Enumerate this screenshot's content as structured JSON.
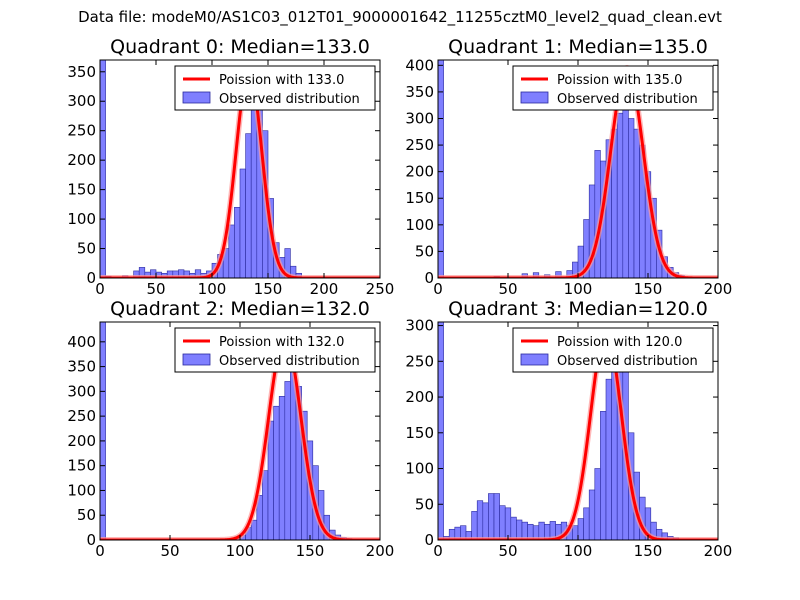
{
  "suptitle": "Data file: modeM0/AS1C03_012T01_9000001642_11255cztM0_level2_quad_clean.evt",
  "colors": {
    "bar_fill": "#7f7fff",
    "bar_edge": "#2a2a9f",
    "line": "#ff0000",
    "line_halo": "#ff9999",
    "axes": "#000000"
  },
  "chart_data": [
    {
      "type": "bar",
      "title": "Quadrant 0: Median=133.0",
      "legend": [
        "Poission with 133.0",
        "Observed distribution"
      ],
      "legend_loc": "top-right",
      "xlim": [
        0,
        250
      ],
      "ylim": [
        0,
        370
      ],
      "xticks": [
        0,
        50,
        100,
        150,
        200,
        250
      ],
      "yticks": [
        0,
        50,
        100,
        150,
        200,
        250,
        300,
        350
      ],
      "bin_width": 5,
      "bins": [
        [
          0,
          370
        ],
        [
          5,
          3
        ],
        [
          10,
          2
        ],
        [
          15,
          1
        ],
        [
          20,
          4
        ],
        [
          25,
          2
        ],
        [
          30,
          12
        ],
        [
          35,
          18
        ],
        [
          40,
          10
        ],
        [
          45,
          14
        ],
        [
          50,
          10
        ],
        [
          55,
          8
        ],
        [
          60,
          12
        ],
        [
          65,
          12
        ],
        [
          70,
          14
        ],
        [
          75,
          12
        ],
        [
          80,
          8
        ],
        [
          85,
          14
        ],
        [
          90,
          8
        ],
        [
          95,
          12
        ],
        [
          100,
          25
        ],
        [
          105,
          40
        ],
        [
          110,
          50
        ],
        [
          115,
          90
        ],
        [
          120,
          120
        ],
        [
          125,
          185
        ],
        [
          130,
          245
        ],
        [
          135,
          340
        ],
        [
          140,
          330
        ],
        [
          145,
          250
        ],
        [
          150,
          135
        ],
        [
          155,
          60
        ],
        [
          160,
          35
        ],
        [
          165,
          50
        ],
        [
          170,
          20
        ],
        [
          175,
          8
        ],
        [
          180,
          2
        ]
      ],
      "poisson_mean": 133.0,
      "poisson_peak": 353
    },
    {
      "type": "bar",
      "title": "Quadrant 1: Median=135.0",
      "legend": [
        "Poission with 135.0",
        "Observed distribution"
      ],
      "legend_loc": "top-right",
      "xlim": [
        0,
        200
      ],
      "ylim": [
        0,
        410
      ],
      "xticks": [
        0,
        50,
        100,
        150,
        200
      ],
      "yticks": [
        0,
        50,
        100,
        150,
        200,
        250,
        300,
        350,
        400
      ],
      "bin_width": 4,
      "bins": [
        [
          0,
          410
        ],
        [
          40,
          3
        ],
        [
          60,
          8
        ],
        [
          68,
          10
        ],
        [
          76,
          6
        ],
        [
          84,
          12
        ],
        [
          92,
          14
        ],
        [
          96,
          30
        ],
        [
          100,
          60
        ],
        [
          104,
          110
        ],
        [
          108,
          175
        ],
        [
          112,
          240
        ],
        [
          116,
          220
        ],
        [
          120,
          260
        ],
        [
          124,
          280
        ],
        [
          128,
          310
        ],
        [
          132,
          320
        ],
        [
          136,
          300
        ],
        [
          140,
          280
        ],
        [
          144,
          250
        ],
        [
          148,
          200
        ],
        [
          152,
          150
        ],
        [
          156,
          90
        ],
        [
          160,
          40
        ],
        [
          164,
          20
        ],
        [
          168,
          10
        ],
        [
          172,
          5
        ],
        [
          176,
          2
        ]
      ],
      "poisson_mean": 135.0,
      "poisson_peak": 395
    },
    {
      "type": "bar",
      "title": "Quadrant 2: Median=132.0",
      "legend": [
        "Poission with 132.0",
        "Observed distribution"
      ],
      "legend_loc": "top-right",
      "xlim": [
        0,
        200
      ],
      "ylim": [
        0,
        440
      ],
      "xticks": [
        0,
        50,
        100,
        150,
        200
      ],
      "yticks": [
        0,
        50,
        100,
        150,
        200,
        250,
        300,
        350,
        400
      ],
      "bin_width": 4,
      "bins": [
        [
          0,
          440
        ],
        [
          84,
          2
        ],
        [
          92,
          3
        ],
        [
          96,
          6
        ],
        [
          100,
          10
        ],
        [
          104,
          25
        ],
        [
          108,
          40
        ],
        [
          112,
          90
        ],
        [
          116,
          140
        ],
        [
          120,
          240
        ],
        [
          124,
          270
        ],
        [
          128,
          290
        ],
        [
          132,
          320
        ],
        [
          136,
          340
        ],
        [
          140,
          310
        ],
        [
          144,
          260
        ],
        [
          148,
          200
        ],
        [
          152,
          150
        ],
        [
          156,
          100
        ],
        [
          160,
          50
        ],
        [
          164,
          20
        ],
        [
          168,
          10
        ],
        [
          172,
          5
        ],
        [
          176,
          3
        ]
      ],
      "poisson_mean": 132.0,
      "poisson_peak": 410
    },
    {
      "type": "bar",
      "title": "Quadrant 3: Median=120.0",
      "legend": [
        "Poission with 120.0",
        "Observed distribution"
      ],
      "legend_loc": "top-right",
      "xlim": [
        0,
        200
      ],
      "ylim": [
        0,
        305
      ],
      "xticks": [
        0,
        50,
        100,
        150,
        200
      ],
      "yticks": [
        0,
        50,
        100,
        150,
        200,
        250,
        300
      ],
      "bin_width": 4,
      "bins": [
        [
          0,
          305
        ],
        [
          4,
          5
        ],
        [
          8,
          15
        ],
        [
          12,
          18
        ],
        [
          16,
          20
        ],
        [
          20,
          12
        ],
        [
          24,
          40
        ],
        [
          28,
          55
        ],
        [
          32,
          52
        ],
        [
          36,
          65
        ],
        [
          40,
          65
        ],
        [
          44,
          48
        ],
        [
          48,
          45
        ],
        [
          52,
          32
        ],
        [
          56,
          28
        ],
        [
          60,
          25
        ],
        [
          64,
          22
        ],
        [
          68,
          20
        ],
        [
          72,
          25
        ],
        [
          76,
          22
        ],
        [
          80,
          26
        ],
        [
          84,
          22
        ],
        [
          88,
          25
        ],
        [
          92,
          20
        ],
        [
          96,
          20
        ],
        [
          100,
          30
        ],
        [
          104,
          45
        ],
        [
          108,
          70
        ],
        [
          112,
          100
        ],
        [
          116,
          180
        ],
        [
          120,
          225
        ],
        [
          124,
          280
        ],
        [
          128,
          295
        ],
        [
          132,
          240
        ],
        [
          136,
          150
        ],
        [
          140,
          95
        ],
        [
          144,
          60
        ],
        [
          148,
          45
        ],
        [
          152,
          25
        ],
        [
          156,
          15
        ],
        [
          160,
          10
        ],
        [
          164,
          5
        ],
        [
          168,
          3
        ]
      ],
      "poisson_mean": 120.0,
      "poisson_peak": 292
    }
  ]
}
